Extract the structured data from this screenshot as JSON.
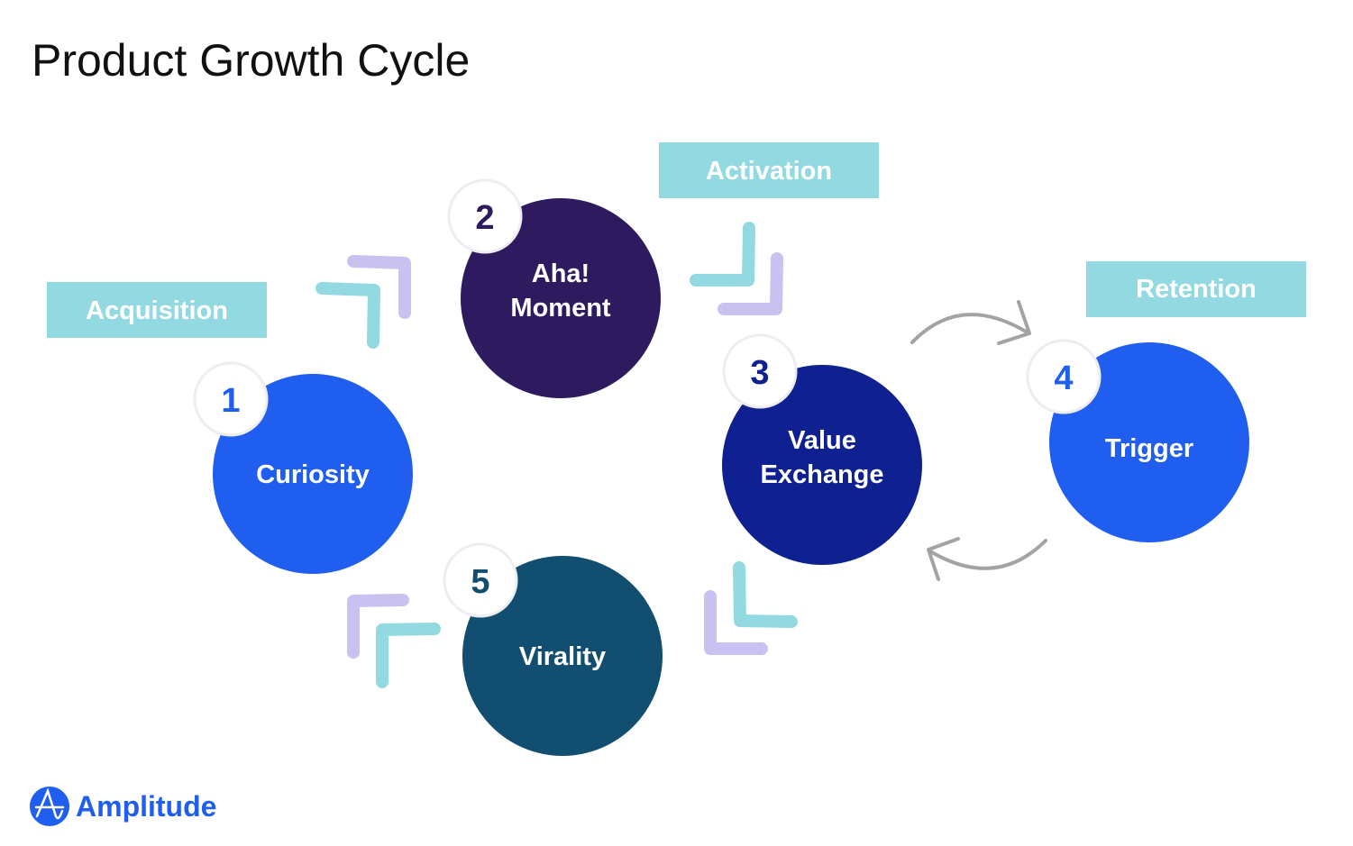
{
  "title": "Product Growth Cycle",
  "stages": {
    "acquisition": "Acquisition",
    "activation": "Activation",
    "retention": "Retention"
  },
  "nodes": [
    {
      "number": "1",
      "label": [
        "Curiosity"
      ],
      "color": "#1f5eee"
    },
    {
      "number": "2",
      "label": [
        "Aha!",
        "Moment"
      ],
      "color": "#2e1a5e"
    },
    {
      "number": "3",
      "label": [
        "Value",
        "Exchange"
      ],
      "color": "#0f2190"
    },
    {
      "number": "4",
      "label": [
        "Trigger"
      ],
      "color": "#1f5eee"
    },
    {
      "number": "5",
      "label": [
        "Virality"
      ],
      "color": "#114e70"
    }
  ],
  "colors": {
    "stage_box": "#93d9e2",
    "chevron_teal": "#93d9e2",
    "chevron_lavender": "#c9c2f0",
    "loop_arrow": "#a3a3a3"
  },
  "logo": {
    "text": "Amplitude",
    "icon": "amplitude-logo-icon"
  }
}
